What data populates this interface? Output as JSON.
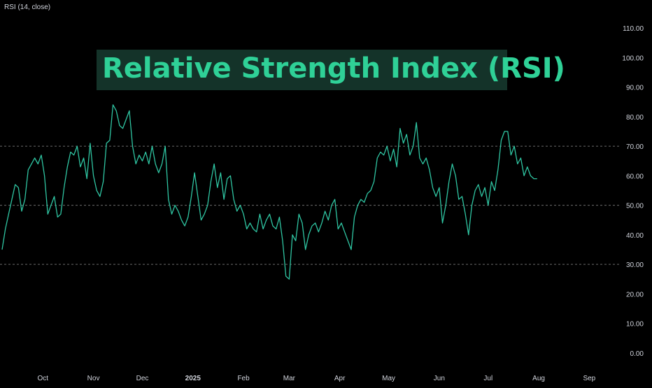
{
  "indicator_label": "RSI (14, close)",
  "title": "Relative Strength Index (RSI)",
  "colors": {
    "background": "#000000",
    "line": "#2fc5a2",
    "banner_bg": "#143329",
    "title": "#2fd197",
    "band": "#6b6b6b"
  },
  "chart_data": {
    "type": "line",
    "title": "Relative Strength Index (RSI)",
    "xlabel": "",
    "ylabel": "",
    "ylim": [
      0,
      110
    ],
    "y_ticks": [
      "110.00",
      "100.00",
      "90.00",
      "80.00",
      "70.00",
      "60.00",
      "50.00",
      "40.00",
      "30.00",
      "20.00",
      "10.00",
      "0.00"
    ],
    "reference_lines": [
      70,
      50,
      30
    ],
    "x_tick_labels": [
      {
        "label": "Oct",
        "date": "2024-10-01",
        "bold": false
      },
      {
        "label": "Nov",
        "date": "2024-11-01",
        "bold": false
      },
      {
        "label": "Dec",
        "date": "2024-12-01",
        "bold": false
      },
      {
        "label": "2025",
        "date": "2025-01-01",
        "bold": true
      },
      {
        "label": "Feb",
        "date": "2025-02-01",
        "bold": false
      },
      {
        "label": "Mar",
        "date": "2025-03-01",
        "bold": false
      },
      {
        "label": "Apr",
        "date": "2025-04-01",
        "bold": false
      },
      {
        "label": "May",
        "date": "2025-05-01",
        "bold": false
      },
      {
        "label": "Jun",
        "date": "2025-06-01",
        "bold": false
      },
      {
        "label": "Jul",
        "date": "2025-07-01",
        "bold": false
      },
      {
        "label": "Aug",
        "date": "2025-08-01",
        "bold": false
      },
      {
        "label": "Sep",
        "date": "2025-09-01",
        "bold": false
      }
    ],
    "x_range": [
      "2024-09-06",
      "2025-09-18"
    ],
    "grid": false,
    "series": [
      {
        "points": [
          [
            "2024-09-06",
            35
          ],
          [
            "2024-09-08",
            42
          ],
          [
            "2024-09-10",
            47
          ],
          [
            "2024-09-12",
            52
          ],
          [
            "2024-09-14",
            57
          ],
          [
            "2024-09-16",
            56
          ],
          [
            "2024-09-18",
            48
          ],
          [
            "2024-09-20",
            52
          ],
          [
            "2024-09-22",
            62
          ],
          [
            "2024-09-24",
            64
          ],
          [
            "2024-09-26",
            66
          ],
          [
            "2024-09-28",
            64
          ],
          [
            "2024-09-30",
            67
          ],
          [
            "2024-10-02",
            60
          ],
          [
            "2024-10-04",
            47
          ],
          [
            "2024-10-06",
            50
          ],
          [
            "2024-10-08",
            53
          ],
          [
            "2024-10-10",
            46
          ],
          [
            "2024-10-12",
            47
          ],
          [
            "2024-10-14",
            56
          ],
          [
            "2024-10-16",
            63
          ],
          [
            "2024-10-18",
            68
          ],
          [
            "2024-10-20",
            67
          ],
          [
            "2024-10-22",
            70
          ],
          [
            "2024-10-24",
            63
          ],
          [
            "2024-10-26",
            66
          ],
          [
            "2024-10-28",
            59
          ],
          [
            "2024-10-30",
            71
          ],
          [
            "2024-11-01",
            60
          ],
          [
            "2024-11-03",
            55
          ],
          [
            "2024-11-05",
            53
          ],
          [
            "2024-11-07",
            58
          ],
          [
            "2024-11-09",
            71
          ],
          [
            "2024-11-11",
            72
          ],
          [
            "2024-11-13",
            84
          ],
          [
            "2024-11-15",
            82
          ],
          [
            "2024-11-17",
            77
          ],
          [
            "2024-11-19",
            76
          ],
          [
            "2024-11-21",
            79
          ],
          [
            "2024-11-23",
            82
          ],
          [
            "2024-11-25",
            70
          ],
          [
            "2024-11-27",
            64
          ],
          [
            "2024-11-29",
            67
          ],
          [
            "2024-12-01",
            65
          ],
          [
            "2024-12-03",
            68
          ],
          [
            "2024-12-05",
            64
          ],
          [
            "2024-12-07",
            70
          ],
          [
            "2024-12-09",
            64
          ],
          [
            "2024-12-11",
            61
          ],
          [
            "2024-12-13",
            64
          ],
          [
            "2024-12-15",
            70
          ],
          [
            "2024-12-17",
            52
          ],
          [
            "2024-12-19",
            47
          ],
          [
            "2024-12-21",
            50
          ],
          [
            "2024-12-23",
            48
          ],
          [
            "2024-12-25",
            45
          ],
          [
            "2024-12-27",
            43
          ],
          [
            "2024-12-29",
            46
          ],
          [
            "2024-12-31",
            53
          ],
          [
            "2025-01-02",
            61
          ],
          [
            "2025-01-04",
            53
          ],
          [
            "2025-01-06",
            45
          ],
          [
            "2025-01-08",
            47
          ],
          [
            "2025-01-10",
            50
          ],
          [
            "2025-01-12",
            58
          ],
          [
            "2025-01-14",
            64
          ],
          [
            "2025-01-16",
            56
          ],
          [
            "2025-01-18",
            61
          ],
          [
            "2025-01-20",
            52
          ],
          [
            "2025-01-22",
            59
          ],
          [
            "2025-01-24",
            60
          ],
          [
            "2025-01-26",
            52
          ],
          [
            "2025-01-28",
            48
          ],
          [
            "2025-01-30",
            50
          ],
          [
            "2025-02-01",
            47
          ],
          [
            "2025-02-03",
            42
          ],
          [
            "2025-02-05",
            44
          ],
          [
            "2025-02-07",
            42
          ],
          [
            "2025-02-09",
            41
          ],
          [
            "2025-02-11",
            47
          ],
          [
            "2025-02-13",
            42
          ],
          [
            "2025-02-15",
            45
          ],
          [
            "2025-02-17",
            47
          ],
          [
            "2025-02-19",
            43
          ],
          [
            "2025-02-21",
            42
          ],
          [
            "2025-02-23",
            46
          ],
          [
            "2025-02-25",
            38
          ],
          [
            "2025-02-27",
            26
          ],
          [
            "2025-03-01",
            25
          ],
          [
            "2025-03-03",
            40
          ],
          [
            "2025-03-05",
            38
          ],
          [
            "2025-03-07",
            47
          ],
          [
            "2025-03-09",
            44
          ],
          [
            "2025-03-11",
            35
          ],
          [
            "2025-03-13",
            40
          ],
          [
            "2025-03-15",
            43
          ],
          [
            "2025-03-17",
            44
          ],
          [
            "2025-03-19",
            41
          ],
          [
            "2025-03-21",
            44
          ],
          [
            "2025-03-23",
            48
          ],
          [
            "2025-03-25",
            45
          ],
          [
            "2025-03-27",
            50
          ],
          [
            "2025-03-29",
            52
          ],
          [
            "2025-03-31",
            42
          ],
          [
            "2025-04-02",
            44
          ],
          [
            "2025-04-04",
            41
          ],
          [
            "2025-04-06",
            38
          ],
          [
            "2025-04-08",
            35
          ],
          [
            "2025-04-10",
            46
          ],
          [
            "2025-04-12",
            50
          ],
          [
            "2025-04-14",
            52
          ],
          [
            "2025-04-16",
            51
          ],
          [
            "2025-04-18",
            54
          ],
          [
            "2025-04-20",
            55
          ],
          [
            "2025-04-22",
            58
          ],
          [
            "2025-04-24",
            66
          ],
          [
            "2025-04-26",
            68
          ],
          [
            "2025-04-28",
            67
          ],
          [
            "2025-04-30",
            70
          ],
          [
            "2025-05-02",
            65
          ],
          [
            "2025-05-04",
            69
          ],
          [
            "2025-05-06",
            63
          ],
          [
            "2025-05-08",
            76
          ],
          [
            "2025-05-10",
            71
          ],
          [
            "2025-05-12",
            74
          ],
          [
            "2025-05-14",
            67
          ],
          [
            "2025-05-16",
            70
          ],
          [
            "2025-05-18",
            78
          ],
          [
            "2025-05-20",
            66
          ],
          [
            "2025-05-22",
            64
          ],
          [
            "2025-05-24",
            66
          ],
          [
            "2025-05-26",
            62
          ],
          [
            "2025-05-28",
            56
          ],
          [
            "2025-05-30",
            53
          ],
          [
            "2025-06-01",
            56
          ],
          [
            "2025-06-03",
            44
          ],
          [
            "2025-06-05",
            50
          ],
          [
            "2025-06-07",
            58
          ],
          [
            "2025-06-09",
            64
          ],
          [
            "2025-06-11",
            60
          ],
          [
            "2025-06-13",
            52
          ],
          [
            "2025-06-15",
            53
          ],
          [
            "2025-06-17",
            47
          ],
          [
            "2025-06-19",
            40
          ],
          [
            "2025-06-21",
            50
          ],
          [
            "2025-06-23",
            55
          ],
          [
            "2025-06-25",
            57
          ],
          [
            "2025-06-27",
            53
          ],
          [
            "2025-06-29",
            56
          ],
          [
            "2025-07-01",
            50
          ],
          [
            "2025-07-03",
            58
          ],
          [
            "2025-07-05",
            55
          ],
          [
            "2025-07-07",
            62
          ],
          [
            "2025-07-09",
            72
          ],
          [
            "2025-07-11",
            75
          ],
          [
            "2025-07-13",
            75
          ],
          [
            "2025-07-15",
            67
          ],
          [
            "2025-07-17",
            70
          ],
          [
            "2025-07-19",
            64
          ],
          [
            "2025-07-21",
            66
          ],
          [
            "2025-07-23",
            60
          ],
          [
            "2025-07-25",
            63
          ],
          [
            "2025-07-27",
            60
          ],
          [
            "2025-07-29",
            59
          ],
          [
            "2025-07-31",
            59
          ]
        ]
      }
    ]
  }
}
